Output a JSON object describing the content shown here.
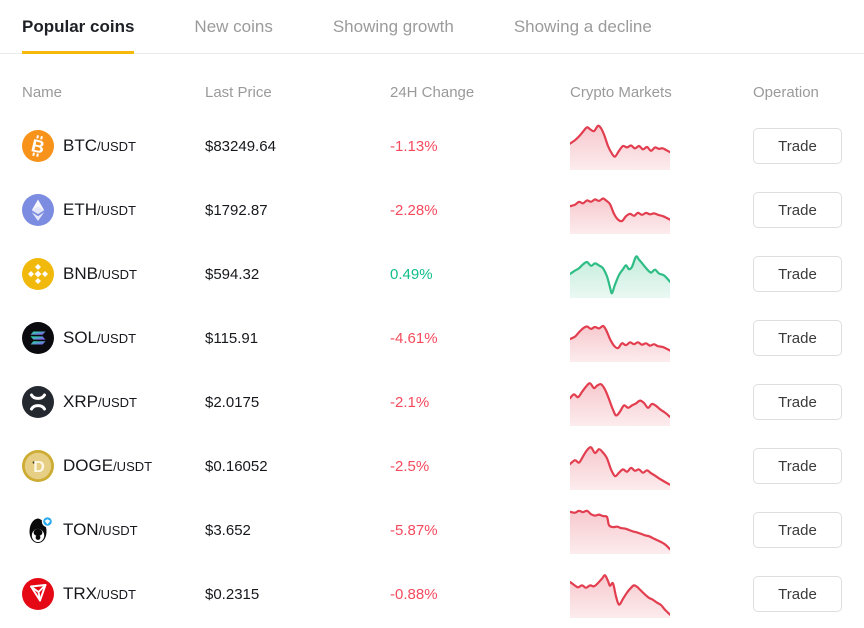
{
  "tabs": [
    {
      "label": "Popular coins",
      "active": true
    },
    {
      "label": "New coins",
      "active": false
    },
    {
      "label": "Showing growth",
      "active": false
    },
    {
      "label": "Showing a decline",
      "active": false
    }
  ],
  "table": {
    "headers": {
      "name": "Name",
      "last_price": "Last Price",
      "change": "24H Change",
      "markets": "Crypto Markets",
      "operation": "Operation"
    },
    "trade_label": "Trade"
  },
  "colors": {
    "accent_yellow": "#F7B80C",
    "red_text": "#F44A5D",
    "green_text": "#13BE8C",
    "red_line": "#E23E4F",
    "green_line": "#2FBD86",
    "tab_inactive": "#9B9B9B",
    "text_dark": "#17181C",
    "header_gray": "#9A9A9A",
    "brand": {
      "btc": "#F7931A",
      "eth": "#7C8CE0",
      "bnb": "#F0B90B",
      "sol": "#0B0B0F",
      "xrp": "#23292F",
      "doge": "#CDAC34",
      "ton": "#0A0A0A",
      "ton_badge": "#2AABEE",
      "trx": "#E50915"
    }
  },
  "rows": [
    {
      "symbol": "BTC",
      "pair": "/USDT",
      "price": "$83249.64",
      "change": "-1.13%",
      "trend": "down",
      "icon": "btc-icon",
      "spark": {
        "points": [
          [
            0,
            45
          ],
          [
            5,
            38
          ],
          [
            9,
            30
          ],
          [
            13,
            20
          ],
          [
            17,
            11
          ],
          [
            20,
            15
          ],
          [
            24,
            19
          ],
          [
            28,
            8
          ],
          [
            31,
            13
          ],
          [
            34,
            26
          ],
          [
            38,
            50
          ],
          [
            42,
            66
          ],
          [
            45,
            72
          ],
          [
            49,
            60
          ],
          [
            53,
            50
          ],
          [
            57,
            53
          ],
          [
            61,
            49
          ],
          [
            65,
            55
          ],
          [
            69,
            50
          ],
          [
            73,
            57
          ],
          [
            77,
            52
          ],
          [
            81,
            60
          ],
          [
            85,
            53
          ],
          [
            89,
            56
          ],
          [
            93,
            55
          ],
          [
            100,
            63
          ]
        ]
      }
    },
    {
      "symbol": "ETH",
      "pair": "/USDT",
      "price": "$1792.87",
      "change": "-2.28%",
      "trend": "down",
      "icon": "eth-icon",
      "spark": {
        "points": [
          [
            0,
            42
          ],
          [
            5,
            39
          ],
          [
            9,
            33
          ],
          [
            13,
            36
          ],
          [
            17,
            30
          ],
          [
            21,
            33
          ],
          [
            25,
            28
          ],
          [
            29,
            31
          ],
          [
            33,
            26
          ],
          [
            36,
            30
          ],
          [
            40,
            38
          ],
          [
            44,
            58
          ],
          [
            48,
            70
          ],
          [
            52,
            73
          ],
          [
            56,
            63
          ],
          [
            60,
            58
          ],
          [
            64,
            62
          ],
          [
            68,
            56
          ],
          [
            72,
            60
          ],
          [
            76,
            56
          ],
          [
            80,
            59
          ],
          [
            84,
            57
          ],
          [
            88,
            60
          ],
          [
            93,
            63
          ],
          [
            100,
            70
          ]
        ]
      }
    },
    {
      "symbol": "BNB",
      "pair": "/USDT",
      "price": "$594.32",
      "change": "0.49%",
      "trend": "up",
      "icon": "bnb-icon",
      "spark": {
        "points": [
          [
            0,
            50
          ],
          [
            5,
            43
          ],
          [
            9,
            38
          ],
          [
            13,
            30
          ],
          [
            17,
            25
          ],
          [
            21,
            33
          ],
          [
            25,
            28
          ],
          [
            29,
            32
          ],
          [
            33,
            38
          ],
          [
            37,
            55
          ],
          [
            40,
            78
          ],
          [
            42,
            90
          ],
          [
            45,
            72
          ],
          [
            49,
            52
          ],
          [
            53,
            40
          ],
          [
            56,
            32
          ],
          [
            59,
            40
          ],
          [
            62,
            35
          ],
          [
            66,
            14
          ],
          [
            69,
            20
          ],
          [
            73,
            30
          ],
          [
            77,
            40
          ],
          [
            81,
            47
          ],
          [
            85,
            41
          ],
          [
            89,
            49
          ],
          [
            94,
            53
          ],
          [
            100,
            66
          ]
        ]
      }
    },
    {
      "symbol": "SOL",
      "pair": "/USDT",
      "price": "$115.91",
      "change": "-4.61%",
      "trend": "down",
      "icon": "sol-icon",
      "spark": {
        "points": [
          [
            0,
            52
          ],
          [
            5,
            47
          ],
          [
            9,
            38
          ],
          [
            13,
            30
          ],
          [
            17,
            26
          ],
          [
            21,
            31
          ],
          [
            25,
            27
          ],
          [
            29,
            30
          ],
          [
            33,
            25
          ],
          [
            36,
            33
          ],
          [
            40,
            52
          ],
          [
            44,
            66
          ],
          [
            48,
            71
          ],
          [
            52,
            61
          ],
          [
            56,
            65
          ],
          [
            60,
            59
          ],
          [
            64,
            63
          ],
          [
            68,
            59
          ],
          [
            72,
            64
          ],
          [
            76,
            61
          ],
          [
            80,
            66
          ],
          [
            84,
            63
          ],
          [
            88,
            67
          ],
          [
            93,
            69
          ],
          [
            100,
            76
          ]
        ]
      }
    },
    {
      "symbol": "XRP",
      "pair": "/USDT",
      "price": "$2.0175",
      "change": "-2.1%",
      "trend": "down",
      "icon": "xrp-icon",
      "spark": {
        "points": [
          [
            0,
            42
          ],
          [
            4,
            34
          ],
          [
            8,
            40
          ],
          [
            12,
            29
          ],
          [
            16,
            18
          ],
          [
            20,
            11
          ],
          [
            24,
            21
          ],
          [
            27,
            16
          ],
          [
            31,
            13
          ],
          [
            35,
            24
          ],
          [
            39,
            44
          ],
          [
            43,
            66
          ],
          [
            46,
            78
          ],
          [
            50,
            70
          ],
          [
            54,
            57
          ],
          [
            58,
            62
          ],
          [
            62,
            57
          ],
          [
            66,
            53
          ],
          [
            70,
            47
          ],
          [
            74,
            52
          ],
          [
            78,
            62
          ],
          [
            82,
            54
          ],
          [
            86,
            58
          ],
          [
            90,
            65
          ],
          [
            95,
            72
          ],
          [
            100,
            81
          ]
        ]
      }
    },
    {
      "symbol": "DOGE",
      "pair": "/USDT",
      "price": "$0.16052",
      "change": "-2.5%",
      "trend": "down",
      "icon": "doge-icon",
      "spark": {
        "points": [
          [
            0,
            46
          ],
          [
            5,
            38
          ],
          [
            9,
            43
          ],
          [
            13,
            30
          ],
          [
            17,
            17
          ],
          [
            21,
            11
          ],
          [
            25,
            23
          ],
          [
            29,
            15
          ],
          [
            33,
            22
          ],
          [
            37,
            34
          ],
          [
            41,
            57
          ],
          [
            45,
            71
          ],
          [
            49,
            64
          ],
          [
            53,
            57
          ],
          [
            57,
            62
          ],
          [
            61,
            54
          ],
          [
            65,
            60
          ],
          [
            69,
            57
          ],
          [
            73,
            64
          ],
          [
            77,
            59
          ],
          [
            81,
            65
          ],
          [
            85,
            70
          ],
          [
            90,
            77
          ],
          [
            100,
            89
          ]
        ]
      }
    },
    {
      "symbol": "TON",
      "pair": "/USDT",
      "price": "$3.652",
      "change": "-5.87%",
      "trend": "down",
      "icon": "ton-icon",
      "spark": {
        "points": [
          [
            0,
            12
          ],
          [
            5,
            14
          ],
          [
            9,
            10
          ],
          [
            13,
            13
          ],
          [
            17,
            10
          ],
          [
            21,
            17
          ],
          [
            25,
            20
          ],
          [
            29,
            18
          ],
          [
            33,
            21
          ],
          [
            37,
            23
          ],
          [
            39,
            40
          ],
          [
            43,
            44
          ],
          [
            47,
            43
          ],
          [
            51,
            46
          ],
          [
            55,
            47
          ],
          [
            59,
            50
          ],
          [
            63,
            53
          ],
          [
            67,
            55
          ],
          [
            71,
            58
          ],
          [
            75,
            61
          ],
          [
            79,
            63
          ],
          [
            83,
            67
          ],
          [
            87,
            71
          ],
          [
            91,
            75
          ],
          [
            95,
            80
          ],
          [
            100,
            90
          ]
        ]
      }
    },
    {
      "symbol": "TRX",
      "pair": "/USDT",
      "price": "$0.2315",
      "change": "-0.88%",
      "trend": "down",
      "icon": "trx-icon",
      "spark": {
        "points": [
          [
            0,
            25
          ],
          [
            4,
            31
          ],
          [
            8,
            36
          ],
          [
            12,
            32
          ],
          [
            16,
            37
          ],
          [
            20,
            32
          ],
          [
            24,
            34
          ],
          [
            28,
            27
          ],
          [
            32,
            18
          ],
          [
            35,
            11
          ],
          [
            38,
            23
          ],
          [
            40,
            33
          ],
          [
            43,
            28
          ],
          [
            46,
            55
          ],
          [
            49,
            72
          ],
          [
            53,
            60
          ],
          [
            57,
            47
          ],
          [
            61,
            37
          ],
          [
            64,
            32
          ],
          [
            67,
            35
          ],
          [
            71,
            43
          ],
          [
            75,
            51
          ],
          [
            79,
            58
          ],
          [
            83,
            62
          ],
          [
            87,
            68
          ],
          [
            91,
            73
          ],
          [
            95,
            83
          ],
          [
            100,
            93
          ]
        ]
      }
    }
  ]
}
